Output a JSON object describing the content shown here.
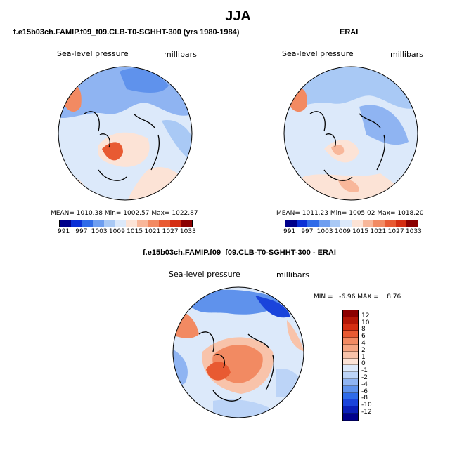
{
  "main_title": "JJA",
  "panel1": {
    "title": "f.e15b03ch.FAMIP.f09_f09.CLB-T0-SGHHT-300 (yrs 1980-1984)",
    "field": "Sea-level pressure",
    "units": "millibars",
    "mean_label": "MEAN=",
    "mean": "1010.38",
    "min_label": "Min=",
    "min": "1002.57",
    "max_label": "Max=",
    "max": "1022.87"
  },
  "panel2": {
    "title": "ERAI",
    "field": "Sea-level pressure",
    "units": "millibars",
    "mean_label": "MEAN=",
    "mean": "1011.23",
    "min_label": "Min=",
    "min": "1005.02",
    "max_label": "Max=",
    "max": "1018.20"
  },
  "top_colorbar_ticks": [
    "991",
    "997",
    "1003",
    "1009",
    "1015",
    "1021",
    "1027",
    "1033"
  ],
  "top_colorbar_colors": [
    "#00008b",
    "#0a2fd6",
    "#2f6be8",
    "#6e9ef0",
    "#a9c9f5",
    "#dce9fa",
    "#fce3d6",
    "#f8b79a",
    "#f28a62",
    "#e85a32",
    "#d42e12",
    "#8b0000"
  ],
  "panel3": {
    "title": "f.e15b03ch.FAMIP.f09_f09.CLB-T0-SGHHT-300 - ERAI",
    "field": "Sea-level pressure",
    "units": "millibars",
    "stats": "MIN =   -6.96 MAX =    8.76"
  },
  "diff_colorbar_labels": [
    "12",
    "10",
    "8",
    "6",
    "4",
    "2",
    "1",
    "0",
    "-1",
    "-2",
    "-4",
    "-6",
    "-8",
    "-10",
    "-12"
  ],
  "diff_colorbar_colors": [
    "#8b0000",
    "#b31606",
    "#d42e12",
    "#e85a32",
    "#f28a62",
    "#f5a582",
    "#f8c3aa",
    "#fce3d6",
    "#dce9fa",
    "#bcd4f7",
    "#8fb4f2",
    "#5f92ec",
    "#2f6be8",
    "#1a44db",
    "#0a1fb8",
    "#00008b"
  ]
}
